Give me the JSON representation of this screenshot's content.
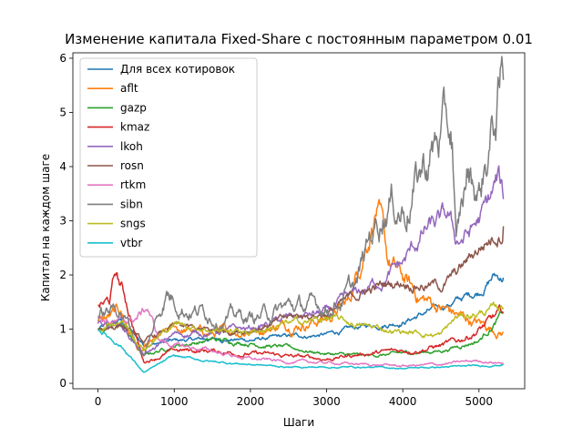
{
  "chart_data": {
    "type": "line",
    "title": "Изменение капитала Fixed-Share с постоянным параметром 0.01",
    "xlabel": "Шаги",
    "ylabel": "Капитал на каждом шаге",
    "xlim": [
      -330,
      5600
    ],
    "ylim": [
      -0.1,
      6.1
    ],
    "xticks": [
      0,
      1000,
      2000,
      3000,
      4000,
      5000
    ],
    "yticks": [
      0,
      1,
      2,
      3,
      4,
      5,
      6
    ],
    "grid": false,
    "legend_position": "top-left",
    "series": [
      {
        "name": "Для всех котировок",
        "color": "#1f77b4",
        "volatility": 0.025,
        "points": [
          [
            0,
            1.0
          ],
          [
            300,
            1.15
          ],
          [
            600,
            0.72
          ],
          [
            1000,
            0.78
          ],
          [
            1500,
            0.82
          ],
          [
            2000,
            0.8
          ],
          [
            2500,
            0.86
          ],
          [
            3000,
            0.9
          ],
          [
            3500,
            1.05
          ],
          [
            4000,
            1.15
          ],
          [
            4500,
            1.4
          ],
          [
            5000,
            1.7
          ],
          [
            5200,
            2.0
          ],
          [
            5320,
            1.95
          ]
        ]
      },
      {
        "name": "aflt",
        "color": "#ff7f0e",
        "volatility": 0.05,
        "points": [
          [
            0,
            1.1
          ],
          [
            300,
            1.3
          ],
          [
            550,
            0.55
          ],
          [
            1000,
            1.0
          ],
          [
            1500,
            0.9
          ],
          [
            2000,
            1.0
          ],
          [
            2500,
            1.1
          ],
          [
            3000,
            1.2
          ],
          [
            3300,
            1.5
          ],
          [
            3500,
            2.6
          ],
          [
            3650,
            3.4
          ],
          [
            3800,
            2.2
          ],
          [
            4000,
            1.9
          ],
          [
            4200,
            1.6
          ],
          [
            4500,
            1.4
          ],
          [
            4800,
            1.2
          ],
          [
            5000,
            1.1
          ],
          [
            5320,
            0.95
          ]
        ]
      },
      {
        "name": "gazp",
        "color": "#2ca02c",
        "volatility": 0.03,
        "points": [
          [
            0,
            1.0
          ],
          [
            300,
            1.1
          ],
          [
            600,
            0.5
          ],
          [
            1000,
            0.7
          ],
          [
            1500,
            0.8
          ],
          [
            2000,
            0.75
          ],
          [
            2500,
            0.65
          ],
          [
            3000,
            0.55
          ],
          [
            3500,
            0.5
          ],
          [
            4000,
            0.55
          ],
          [
            4500,
            0.6
          ],
          [
            5000,
            0.8
          ],
          [
            5200,
            1.1
          ],
          [
            5320,
            1.3
          ]
        ]
      },
      {
        "name": "kmaz",
        "color": "#d62728",
        "volatility": 0.04,
        "points": [
          [
            0,
            1.4
          ],
          [
            150,
            1.5
          ],
          [
            230,
            2.0
          ],
          [
            350,
            1.6
          ],
          [
            600,
            0.4
          ],
          [
            1000,
            0.6
          ],
          [
            1500,
            0.6
          ],
          [
            2000,
            0.55
          ],
          [
            2500,
            0.5
          ],
          [
            3000,
            0.45
          ],
          [
            3500,
            0.55
          ],
          [
            4000,
            0.6
          ],
          [
            4500,
            0.7
          ],
          [
            4700,
            0.75
          ],
          [
            5000,
            1.0
          ],
          [
            5320,
            1.3
          ]
        ]
      },
      {
        "name": "lkoh",
        "color": "#9467bd",
        "volatility": 0.035,
        "points": [
          [
            0,
            1.1
          ],
          [
            300,
            1.1
          ],
          [
            600,
            0.5
          ],
          [
            1000,
            0.9
          ],
          [
            1500,
            0.95
          ],
          [
            2000,
            1.0
          ],
          [
            2500,
            1.2
          ],
          [
            3000,
            1.3
          ],
          [
            3500,
            1.7
          ],
          [
            4000,
            2.2
          ],
          [
            4300,
            2.8
          ],
          [
            4600,
            3.0
          ],
          [
            4700,
            2.6
          ],
          [
            4900,
            2.8
          ],
          [
            5100,
            3.2
          ],
          [
            5250,
            3.7
          ],
          [
            5320,
            3.4
          ]
        ]
      },
      {
        "name": "rosn",
        "color": "#8c564b",
        "volatility": 0.03,
        "points": [
          [
            0,
            1.0
          ],
          [
            300,
            1.1
          ],
          [
            600,
            0.75
          ],
          [
            1000,
            1.05
          ],
          [
            1500,
            0.95
          ],
          [
            2000,
            1.0
          ],
          [
            2500,
            1.2
          ],
          [
            3000,
            1.3
          ],
          [
            3500,
            1.7
          ],
          [
            4000,
            1.9
          ],
          [
            4500,
            1.8
          ],
          [
            4700,
            2.0
          ],
          [
            5000,
            2.5
          ],
          [
            5320,
            2.9
          ]
        ]
      },
      {
        "name": "rtkm",
        "color": "#e377c2",
        "volatility": 0.035,
        "points": [
          [
            0,
            1.2
          ],
          [
            300,
            1.1
          ],
          [
            500,
            1.2
          ],
          [
            650,
            1.4
          ],
          [
            800,
            0.8
          ],
          [
            1000,
            0.7
          ],
          [
            1500,
            0.6
          ],
          [
            2000,
            0.45
          ],
          [
            2500,
            0.4
          ],
          [
            3000,
            0.38
          ],
          [
            3500,
            0.35
          ],
          [
            4000,
            0.32
          ],
          [
            4500,
            0.35
          ],
          [
            5000,
            0.42
          ],
          [
            5320,
            0.38
          ]
        ]
      },
      {
        "name": "sibn",
        "color": "#7f7f7f",
        "volatility": 0.06,
        "points": [
          [
            0,
            1.2
          ],
          [
            300,
            1.4
          ],
          [
            600,
            0.5
          ],
          [
            900,
            1.7
          ],
          [
            1200,
            1.4
          ],
          [
            1500,
            1.3
          ],
          [
            2000,
            1.2
          ],
          [
            2500,
            1.4
          ],
          [
            3000,
            1.4
          ],
          [
            3400,
            1.8
          ],
          [
            3600,
            2.8
          ],
          [
            3800,
            3.5
          ],
          [
            4000,
            3.3
          ],
          [
            4200,
            3.8
          ],
          [
            4500,
            4.6
          ],
          [
            4650,
            4.5
          ],
          [
            4700,
            2.4
          ],
          [
            4850,
            3.8
          ],
          [
            5000,
            3.5
          ],
          [
            5100,
            4.2
          ],
          [
            5250,
            5.2
          ],
          [
            5320,
            5.6
          ]
        ]
      },
      {
        "name": "sngs",
        "color": "#bcbd22",
        "volatility": 0.03,
        "points": [
          [
            0,
            1.0
          ],
          [
            300,
            1.2
          ],
          [
            600,
            0.65
          ],
          [
            1000,
            1.1
          ],
          [
            1500,
            1.0
          ],
          [
            2000,
            0.95
          ],
          [
            2500,
            1.1
          ],
          [
            2800,
            1.15
          ],
          [
            3000,
            1.2
          ],
          [
            3500,
            1.05
          ],
          [
            4000,
            0.95
          ],
          [
            4500,
            0.9
          ],
          [
            4700,
            1.2
          ],
          [
            5000,
            1.3
          ],
          [
            5320,
            1.4
          ]
        ]
      },
      {
        "name": "vtbr",
        "color": "#17becf",
        "volatility": 0.025,
        "points": [
          [
            0,
            1.0
          ],
          [
            300,
            0.7
          ],
          [
            600,
            0.2
          ],
          [
            1000,
            0.5
          ],
          [
            1500,
            0.4
          ],
          [
            2000,
            0.35
          ],
          [
            2500,
            0.3
          ],
          [
            3000,
            0.3
          ],
          [
            3500,
            0.3
          ],
          [
            4000,
            0.28
          ],
          [
            4500,
            0.3
          ],
          [
            5000,
            0.32
          ],
          [
            5320,
            0.35
          ]
        ]
      }
    ]
  }
}
